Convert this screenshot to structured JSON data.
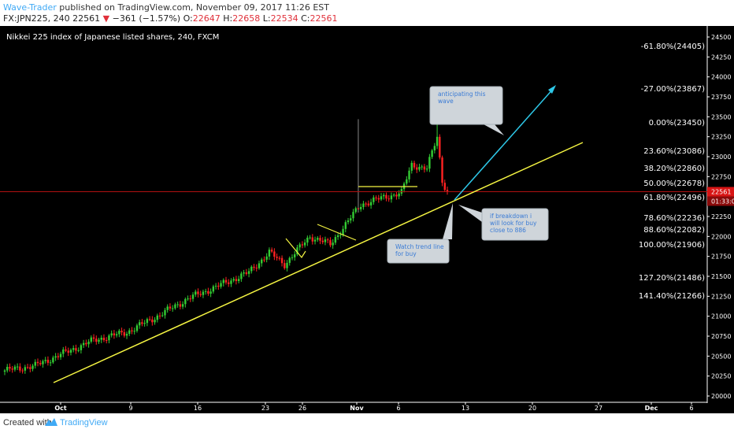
{
  "header": {
    "author": "Wave-Trader",
    "published": " published on TradingView.com, November 09, 2017 11:26 EST",
    "symbol": "FX:JPN225, 240",
    "last": "22561",
    "change_arrow": "▼",
    "change": "−361 (−1.57%)",
    "o_label": "O:",
    "o": "22647",
    "h_label": "H:",
    "h": "22658",
    "l_label": "L:",
    "l": "22534",
    "c_label": "C:",
    "c": "22561"
  },
  "footer": {
    "created_with": "Created with",
    "brand": "TradingView"
  },
  "colors": {
    "background": "#000000",
    "up": "#33cc33",
    "down": "#ff2222",
    "trendline": "#f5f542",
    "arrow": "#2ec8e8",
    "price_line": "#b01010"
  },
  "chart_data": {
    "type": "candlestick",
    "title": "Nikkei 225 index of Japanese listed shares, 240, FXCM",
    "ylim": [
      19950,
      24600
    ],
    "y_ticks": [
      20000,
      20250,
      20500,
      20750,
      21000,
      21250,
      21500,
      21750,
      22000,
      22250,
      22500,
      22750,
      23000,
      23250,
      23500,
      23750,
      24000,
      24250,
      24500
    ],
    "x_ticks": [
      "Oct",
      "9",
      "16",
      "23",
      "26",
      "Nov",
      "6",
      "13",
      "20",
      "27",
      "Dec",
      "6"
    ],
    "last_price": "22561",
    "countdown": "01:33:0",
    "fib_levels": [
      {
        "label": "-61.80%(24405)",
        "value": 24405
      },
      {
        "label": "-27.00%(23867)",
        "value": 23867
      },
      {
        "label": "0.00%(23450)",
        "value": 23450
      },
      {
        "label": "23.60%(23086)",
        "value": 23086
      },
      {
        "label": "38.20%(22860)",
        "value": 22860
      },
      {
        "label": "50.00%(22678)",
        "value": 22678
      },
      {
        "label": "61.80%(22496)",
        "value": 22496
      },
      {
        "label": "78.60%(22236)",
        "value": 22236
      },
      {
        "label": "88.60%(22082)",
        "value": 22082
      },
      {
        "label": "100.00%(21906)",
        "value": 21906
      },
      {
        "label": "127.20%(21486)",
        "value": 21486
      },
      {
        "label": "141.40%(21266)",
        "value": 21266
      }
    ],
    "annotations": [
      {
        "text": [
          "anticipating this",
          "wave"
        ]
      },
      {
        "text": [
          "Watch trend line",
          "for buy"
        ]
      },
      {
        "text": [
          "if breakdown i",
          "will look for buy",
          "close to 886"
        ]
      }
    ],
    "series_outline": [
      {
        "bar": 0,
        "close": 20320
      },
      {
        "bar": 12,
        "close": 20380
      },
      {
        "bar": 22,
        "close": 20520
      },
      {
        "bar": 35,
        "close": 20700
      },
      {
        "bar": 48,
        "close": 20800
      },
      {
        "bar": 60,
        "close": 21000
      },
      {
        "bar": 72,
        "close": 21220
      },
      {
        "bar": 84,
        "close": 21380
      },
      {
        "bar": 96,
        "close": 21550
      },
      {
        "bar": 104,
        "close": 21800
      },
      {
        "bar": 110,
        "close": 21650
      },
      {
        "bar": 120,
        "close": 22000
      },
      {
        "bar": 128,
        "close": 21900
      },
      {
        "bar": 134,
        "close": 22150
      },
      {
        "bar": 140,
        "close": 22400
      },
      {
        "bar": 148,
        "close": 22480
      },
      {
        "bar": 156,
        "close": 22550
      },
      {
        "bar": 160,
        "close": 22900
      },
      {
        "bar": 166,
        "close": 22850
      },
      {
        "bar": 170,
        "close": 23250
      },
      {
        "bar": 172,
        "close": 22700
      },
      {
        "bar": 174,
        "close": 22561
      }
    ]
  }
}
